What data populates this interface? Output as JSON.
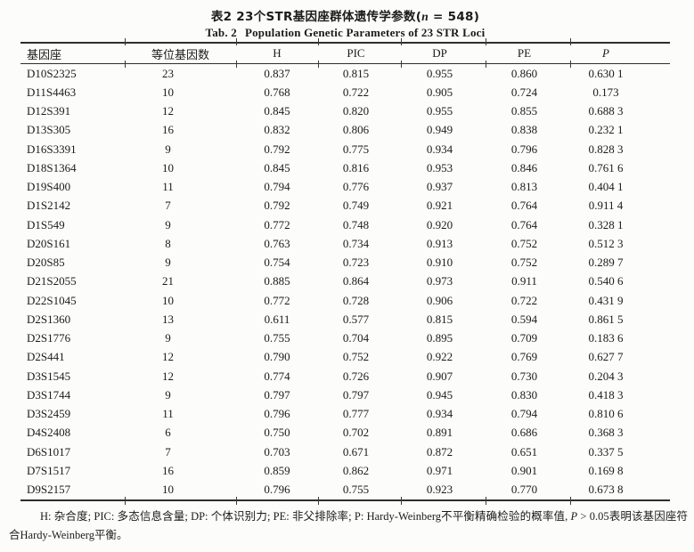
{
  "page": {
    "title_zh": {
      "pre": "表2 23个STR基因座群体遗传学参数(",
      "n": "n",
      "post": " = 548)"
    },
    "title_en": {
      "label": "Tab. 2",
      "text": "Population Genetic Parameters of 23 STR Loci"
    }
  },
  "table": {
    "headers": [
      "基因座",
      "等位基因数",
      "H",
      "PIC",
      "DP",
      "PE",
      "P"
    ],
    "rows": [
      [
        "D10S2325",
        "23",
        "0.837",
        "0.815",
        "0.955",
        "0.860",
        "0.630 1"
      ],
      [
        "D11S4463",
        "10",
        "0.768",
        "0.722",
        "0.905",
        "0.724",
        "0.173"
      ],
      [
        "D12S391",
        "12",
        "0.845",
        "0.820",
        "0.955",
        "0.855",
        "0.688 3"
      ],
      [
        "D13S305",
        "16",
        "0.832",
        "0.806",
        "0.949",
        "0.838",
        "0.232 1"
      ],
      [
        "D16S3391",
        "9",
        "0.792",
        "0.775",
        "0.934",
        "0.796",
        "0.828 3"
      ],
      [
        "D18S1364",
        "10",
        "0.845",
        "0.816",
        "0.953",
        "0.846",
        "0.761 6"
      ],
      [
        "D19S400",
        "11",
        "0.794",
        "0.776",
        "0.937",
        "0.813",
        "0.404 1"
      ],
      [
        "D1S2142",
        "7",
        "0.792",
        "0.749",
        "0.921",
        "0.764",
        "0.911 4"
      ],
      [
        "D1S549",
        "9",
        "0.772",
        "0.748",
        "0.920",
        "0.764",
        "0.328 1"
      ],
      [
        "D20S161",
        "8",
        "0.763",
        "0.734",
        "0.913",
        "0.752",
        "0.512 3"
      ],
      [
        "D20S85",
        "9",
        "0.754",
        "0.723",
        "0.910",
        "0.752",
        "0.289 7"
      ],
      [
        "D21S2055",
        "21",
        "0.885",
        "0.864",
        "0.973",
        "0.911",
        "0.540 6"
      ],
      [
        "D22S1045",
        "10",
        "0.772",
        "0.728",
        "0.906",
        "0.722",
        "0.431 9"
      ],
      [
        "D2S1360",
        "13",
        "0.611",
        "0.577",
        "0.815",
        "0.594",
        "0.861 5"
      ],
      [
        "D2S1776",
        "9",
        "0.755",
        "0.704",
        "0.895",
        "0.709",
        "0.183 6"
      ],
      [
        "D2S441",
        "12",
        "0.790",
        "0.752",
        "0.922",
        "0.769",
        "0.627 7"
      ],
      [
        "D3S1545",
        "12",
        "0.774",
        "0.726",
        "0.907",
        "0.730",
        "0.204 3"
      ],
      [
        "D3S1744",
        "9",
        "0.797",
        "0.797",
        "0.945",
        "0.830",
        "0.418 3"
      ],
      [
        "D3S2459",
        "11",
        "0.796",
        "0.777",
        "0.934",
        "0.794",
        "0.810 6"
      ],
      [
        "D4S2408",
        "6",
        "0.750",
        "0.702",
        "0.891",
        "0.686",
        "0.368 3"
      ],
      [
        "D6S1017",
        "7",
        "0.703",
        "0.671",
        "0.872",
        "0.651",
        "0.337 5"
      ],
      [
        "D7S1517",
        "16",
        "0.859",
        "0.862",
        "0.971",
        "0.901",
        "0.169 8"
      ],
      [
        "D9S2157",
        "10",
        "0.796",
        "0.755",
        "0.923",
        "0.770",
        "0.673 8"
      ]
    ]
  },
  "footnote": {
    "part1": "H: 杂合度; PIC: 多态信息含量; DP: 个体识别力; PE: 非父排除率; P: Hardy-Weinberg不平衡精确检验的概率值, ",
    "p_italic": "P",
    "part2": " > 0.05表明该基因座符合Hardy-Weinberg平衡。"
  },
  "colors": {
    "text": "#1b1b1b",
    "rule": "#2e2e2e",
    "background": "#fcfcfb"
  }
}
